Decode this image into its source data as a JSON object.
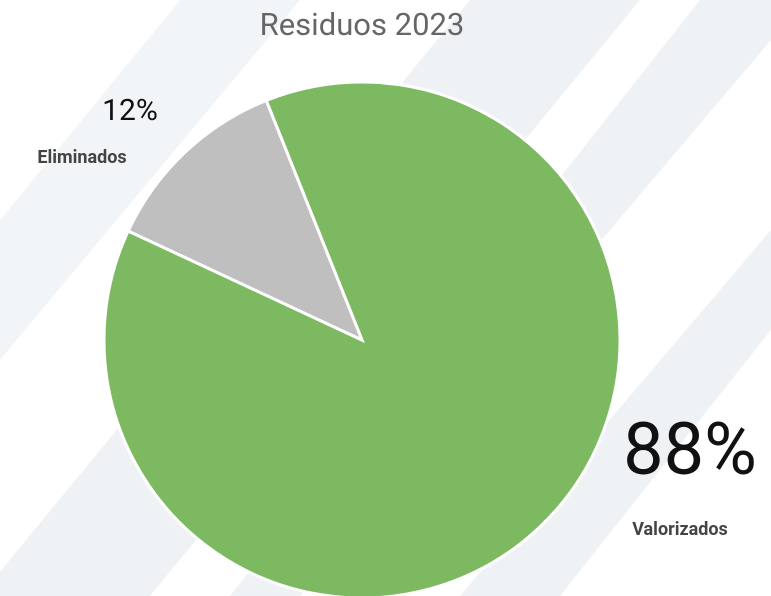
{
  "chart_data": {
    "type": "pie",
    "title": "Residuos 2023",
    "categories": [
      "Valorizados",
      "Eliminados"
    ],
    "values": [
      88,
      12
    ],
    "value_labels": [
      "88%",
      "12%"
    ],
    "colors": [
      "#7db960",
      "#bfbfbf"
    ]
  }
}
